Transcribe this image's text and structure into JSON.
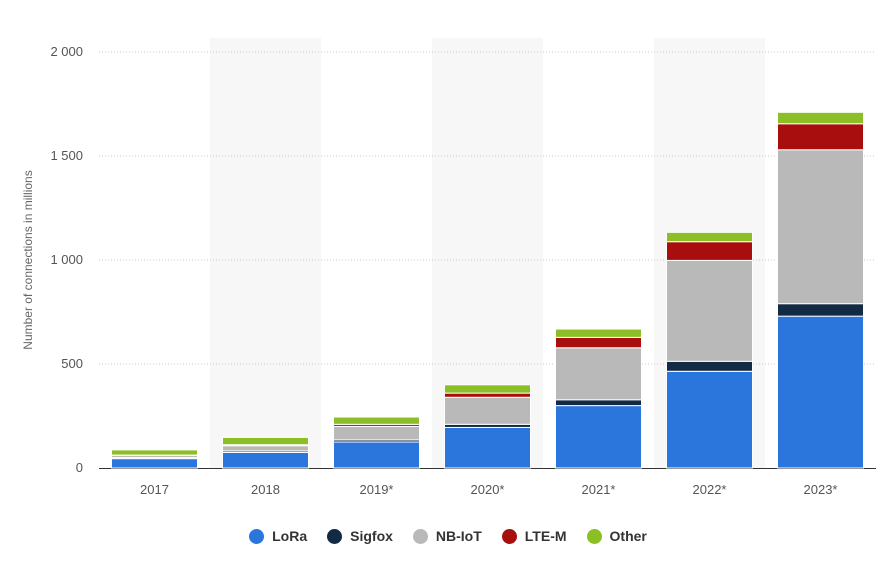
{
  "chart_data": {
    "type": "bar",
    "stacked": true,
    "categories": [
      "2017",
      "2018",
      "2019*",
      "2020*",
      "2021*",
      "2022*",
      "2023*"
    ],
    "series": [
      {
        "name": "LoRa",
        "color": "#2a76dd",
        "values": [
          45,
          75,
          125,
          195,
          300,
          465,
          730
        ]
      },
      {
        "name": "Sigfox",
        "color": "#122a43",
        "values": [
          5,
          7,
          10,
          15,
          28,
          48,
          60
        ]
      },
      {
        "name": "NB-IoT",
        "color": "#b9b9b9",
        "values": [
          10,
          25,
          65,
          130,
          250,
          485,
          740
        ]
      },
      {
        "name": "LTE-M",
        "color": "#a90e0e",
        "values": [
          2,
          5,
          10,
          20,
          50,
          90,
          125
        ]
      },
      {
        "name": "Other",
        "color": "#8cbf26",
        "values": [
          25,
          35,
          35,
          40,
          40,
          45,
          55
        ]
      }
    ],
    "ylabel": "Number of connections in millions",
    "ylim": [
      0,
      2000
    ],
    "yticks": [
      {
        "value": 0,
        "label": "0"
      },
      {
        "value": 500,
        "label": "500"
      },
      {
        "value": 1000,
        "label": "1 000"
      },
      {
        "value": 1500,
        "label": "1 500"
      },
      {
        "value": 2000,
        "label": "2 000"
      }
    ],
    "grid": true,
    "alternate_column_shading": true,
    "legend_position": "bottom"
  }
}
